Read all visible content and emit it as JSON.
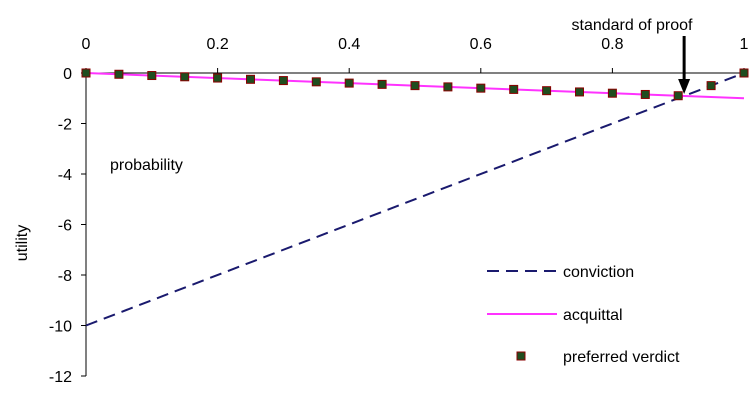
{
  "chart_data": {
    "type": "line",
    "xlabel": "probability",
    "ylabel": "utility",
    "xlim": [
      0,
      1
    ],
    "ylim": [
      -12,
      0
    ],
    "x_axis_position": "top",
    "grid": false,
    "x_ticks": [
      "0",
      "0.2",
      "0.4",
      "0.6",
      "0.8",
      "1"
    ],
    "y_ticks": [
      "0",
      "-2",
      "-4",
      "-6",
      "-8",
      "-10",
      "-12"
    ],
    "legend_position": "bottom-right",
    "annotation": {
      "text": "standard of proof",
      "x": 0.909,
      "y": -0.91
    },
    "series": [
      {
        "name": "conviction",
        "style": "dashed",
        "color": "#1a1a6e",
        "x": [
          0,
          1
        ],
        "y": [
          -10,
          0
        ]
      },
      {
        "name": "acquittal",
        "style": "solid",
        "color": "#ff33ff",
        "x": [
          0,
          1
        ],
        "y": [
          0,
          -1
        ]
      },
      {
        "name": "preferred verdict",
        "style": "markers",
        "marker_fill": "#1f4d1f",
        "marker_edge": "#8b0000",
        "x": [
          0,
          0.05,
          0.1,
          0.15,
          0.2,
          0.25,
          0.3,
          0.35,
          0.4,
          0.45,
          0.5,
          0.55,
          0.6,
          0.65,
          0.7,
          0.75,
          0.8,
          0.85,
          0.9,
          0.95,
          1
        ],
        "y": [
          0,
          -0.05,
          -0.1,
          -0.15,
          -0.2,
          -0.25,
          -0.3,
          -0.35,
          -0.4,
          -0.45,
          -0.5,
          -0.55,
          -0.6,
          -0.65,
          -0.7,
          -0.75,
          -0.8,
          -0.85,
          -0.9,
          -0.5,
          0
        ]
      }
    ]
  }
}
